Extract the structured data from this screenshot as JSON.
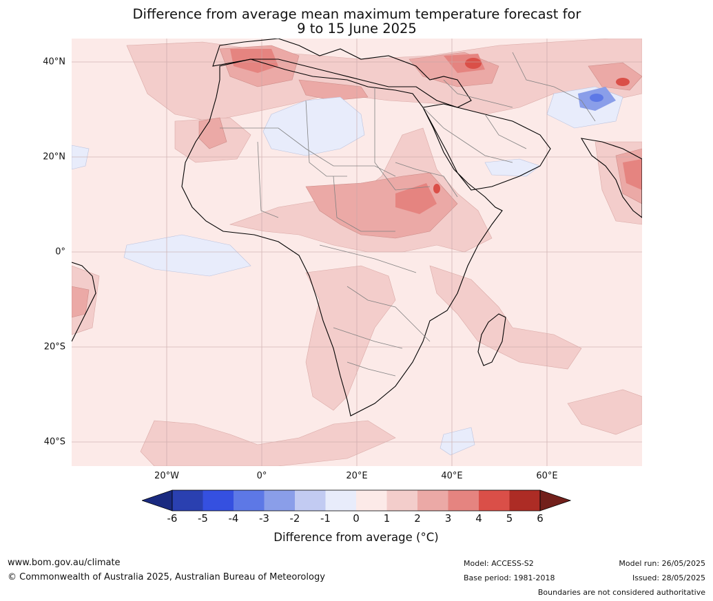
{
  "title": {
    "line1": "Difference from average mean maximum temperature forecast for",
    "line2": "9 to 15 June 2025"
  },
  "map": {
    "lat_labels": [
      "40°N",
      "20°N",
      "0°",
      "20°S",
      "40°S"
    ],
    "lon_labels": [
      "20°W",
      "0°",
      "20°E",
      "40°E",
      "60°E"
    ],
    "lat_values": [
      40,
      20,
      0,
      -20,
      -40
    ],
    "lon_values": [
      -20,
      0,
      20,
      40,
      60
    ],
    "extent": {
      "lon_min": -40,
      "lon_max": 80,
      "lat_min": -45,
      "lat_max": 45
    }
  },
  "colorbar": {
    "title": "Difference from average (°C)",
    "ticks": [
      "-6",
      "-5",
      "-4",
      "-3",
      "-2",
      "-1",
      "0",
      "1",
      "2",
      "3",
      "4",
      "5",
      "6"
    ],
    "colors": [
      "#1a2a80",
      "#2a40b0",
      "#3550e0",
      "#5d78e6",
      "#8a9ee9",
      "#c2cbf2",
      "#e8ecfb",
      "#fceae8",
      "#f3cdcb",
      "#eba9a6",
      "#e58480",
      "#da4f48",
      "#ad2c25",
      "#72201b"
    ]
  },
  "footer": {
    "website": "www.bom.gov.au/climate",
    "copyright": "© Commonwealth of Australia 2025, Australian Bureau of Meteorology",
    "model": "Model: ACCESS-S2",
    "base_period": "Base period: 1981-2018",
    "model_run": "Model run: 26/05/2025",
    "issued": "Issued: 28/05/2025",
    "disclaimer": "Boundaries are not considered authoritative"
  }
}
